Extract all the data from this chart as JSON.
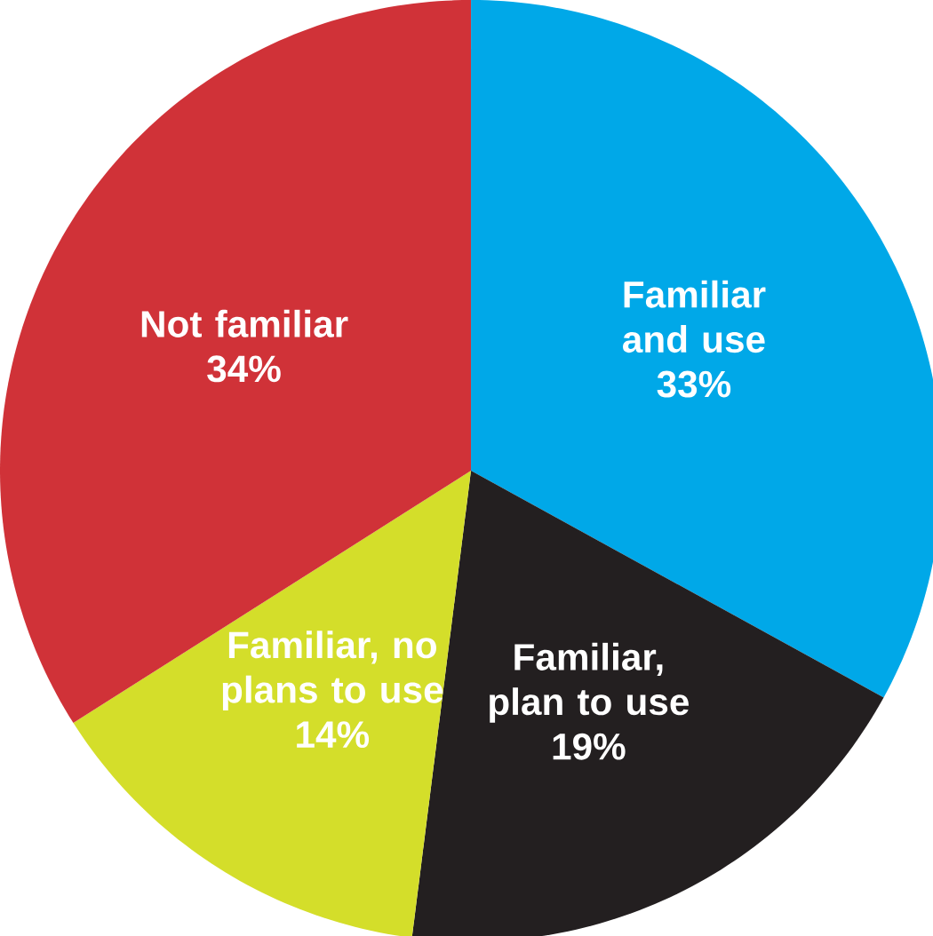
{
  "chart_data": {
    "type": "pie",
    "categories": [
      "Familiar and use",
      "Familiar, plan to use",
      "Familiar, no plans to use",
      "Not familiar"
    ],
    "values": [
      33,
      19,
      14,
      34
    ],
    "colors": [
      "#00a8e8",
      "#231f20",
      "#d4de2a",
      "#d03238"
    ],
    "value_labels": [
      "33%",
      "19%",
      "14%",
      "34%"
    ]
  }
}
